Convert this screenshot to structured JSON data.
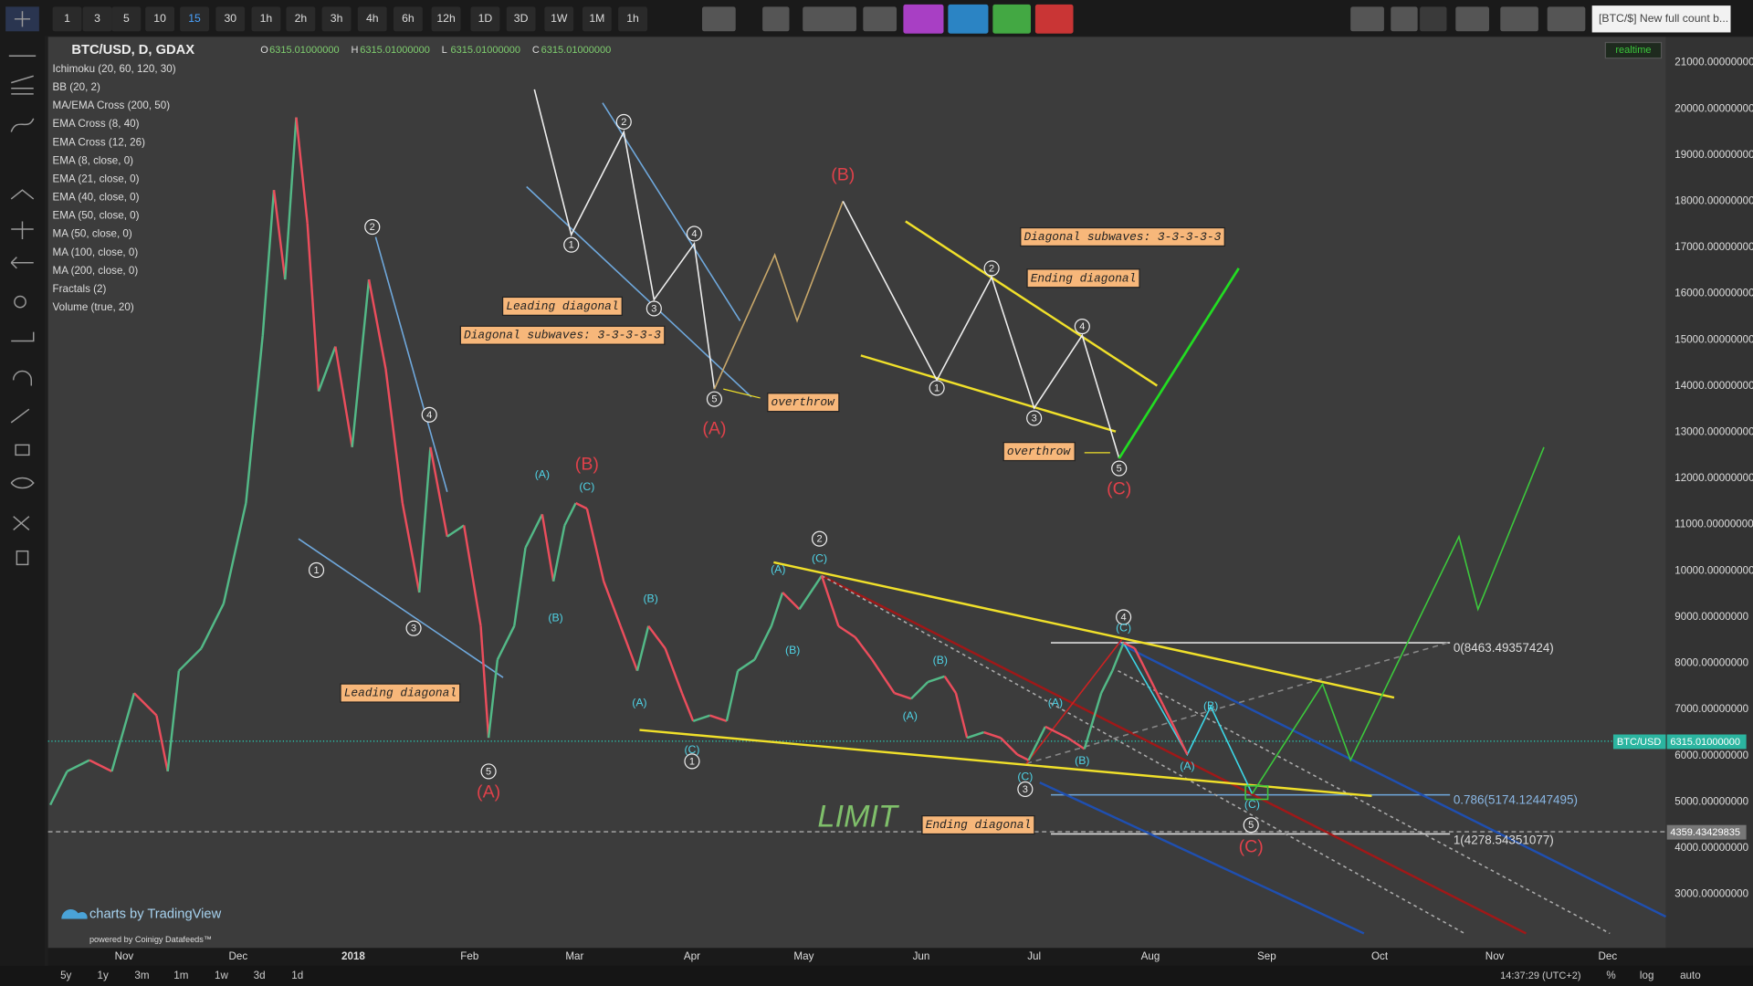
{
  "toolbar": {
    "intervals": [
      "1",
      "3",
      "5",
      "10",
      "15",
      "30",
      "1h",
      "2h",
      "3h",
      "4h",
      "6h",
      "12h",
      "1D",
      "3D",
      "1W",
      "1M",
      "1h"
    ],
    "search": "[BTC/$] New full count b..."
  },
  "legend": {
    "symbol": "BTC/USD, D, GDAX",
    "ohlc": [
      [
        "O",
        "6315.01000000"
      ],
      [
        "H",
        "6315.01000000"
      ],
      [
        "L",
        "6315.01000000"
      ],
      [
        "C",
        "6315.01000000"
      ]
    ],
    "status": "realtime"
  },
  "indicators": [
    "Ichimoku (20, 60, 120, 30)",
    "BB (20, 2)",
    "MA/EMA Cross (200, 50)",
    "EMA Cross (8, 40)",
    "EMA Cross (12, 26)",
    "EMA (8, close, 0)",
    "EMA (21, close, 0)",
    "EMA (40, close, 0)",
    "EMA (50, close, 0)",
    "MA (50, close, 0)",
    "MA (100, close, 0)",
    "MA (200, close, 0)",
    "Fractals (2)",
    "Volume (true, 20)"
  ],
  "price_axis": {
    "labels": [
      "21000.00000000",
      "20000.00000000",
      "19000.00000000",
      "18000.00000000",
      "17000.00000000",
      "16000.00000000",
      "15000.00000000",
      "14000.00000000",
      "13000.00000000",
      "12000.00000000",
      "11000.00000000",
      "10000.00000000",
      "9000.00000000",
      "8000.00000000",
      "7000.00000000",
      "6000.00000000",
      "5000.00000000",
      "4000.00000000",
      "3000.00000000"
    ],
    "symbol_tag": "BTC/USD",
    "last_price": "6315.01000000",
    "level_price": "4359.43429835"
  },
  "time_axis": [
    "Nov",
    "Dec",
    "2018",
    "Feb",
    "Mar",
    "Apr",
    "May",
    "Jun",
    "Jul",
    "Aug",
    "Sep",
    "Oct",
    "Nov",
    "Dec"
  ],
  "fib_levels": [
    "0(8463.49357424)",
    "0.786(5174.12447495)",
    "1(4278.54351077)"
  ],
  "wave_labels": {
    "white": [
      "1",
      "2",
      "3",
      "4",
      "5",
      "1",
      "2",
      "3",
      "4",
      "5",
      "1",
      "2",
      "3",
      "4",
      "5",
      "1",
      "2",
      "3",
      "4",
      "5"
    ],
    "red": [
      "(A)",
      "(B)",
      "(A)",
      "(B)",
      "(C)",
      "(C)"
    ],
    "cyan": [
      "(A)",
      "(C)",
      "(B)",
      "(B)",
      "(A)",
      "(C)",
      "(A)",
      "(C)",
      "(B)",
      "(B)",
      "(A)",
      "(A)",
      "(C)",
      "(B)",
      "(C)",
      "(B)",
      "(A)",
      "(C)"
    ]
  },
  "notes": [
    "Diagonal subwaves: 3-3-3-3-3",
    "Ending diagonal",
    "Leading diagonal",
    "Diagonal subwaves: 3-3-3-3-3",
    "overthrow",
    "overthrow",
    "Leading diagonal",
    "Ending diagonal"
  ],
  "limit": "LIMIT",
  "branding": {
    "watermark": "charts by TradingView",
    "powered": "powered by Coinigy Datafeeds™"
  },
  "bottom_bar": {
    "ranges": [
      "5y",
      "1y",
      "3m",
      "1m",
      "1w",
      "3d",
      "1d"
    ],
    "clock": "14:37:29 (UTC+2)",
    "percent": "%",
    "log": "log",
    "auto": "auto"
  }
}
